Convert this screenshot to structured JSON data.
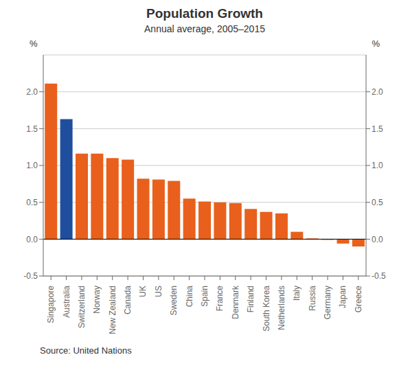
{
  "chart_data": {
    "type": "bar",
    "title": "Population Growth",
    "subtitle": "Annual average, 2005–2015",
    "ylabel": "%",
    "y2label": "%",
    "source_label": "Source:",
    "source": "United Nations",
    "categories": [
      "Singapore",
      "Australia",
      "Switzerland",
      "Norway",
      "New Zealand",
      "Canada",
      "UK",
      "US",
      "Sweden",
      "China",
      "Spain",
      "France",
      "Denmark",
      "Finland",
      "South Korea",
      "Netherlands",
      "Italy",
      "Russia",
      "Germany",
      "Japan",
      "Greece"
    ],
    "values": [
      2.11,
      1.63,
      1.16,
      1.16,
      1.1,
      1.08,
      0.82,
      0.81,
      0.79,
      0.55,
      0.51,
      0.5,
      0.49,
      0.41,
      0.37,
      0.35,
      0.1,
      0.01,
      -0.01,
      -0.06,
      -0.1
    ],
    "colors": [
      "#E8601C",
      "#1F4E9E",
      "#E8601C",
      "#E8601C",
      "#E8601C",
      "#E8601C",
      "#E8601C",
      "#E8601C",
      "#E8601C",
      "#E8601C",
      "#E8601C",
      "#E8601C",
      "#E8601C",
      "#E8601C",
      "#E8601C",
      "#E8601C",
      "#E8601C",
      "#E8601C",
      "#E8601C",
      "#E8601C",
      "#E8601C"
    ],
    "ylim": [
      -0.5,
      2.5
    ],
    "yticks": [
      -0.5,
      {
        "value": 0,
        "label": "0.0"
      },
      0.5,
      {
        "value": 1,
        "label": "1.0"
      },
      1.5,
      {
        "value": 2,
        "label": "2.0"
      }
    ],
    "y2lim": [
      -0.5,
      2.5
    ],
    "y2ticks": [
      -0.5,
      {
        "value": 0,
        "label": "0.0"
      },
      0.5,
      {
        "value": 1,
        "label": "1.0"
      },
      1.5,
      {
        "value": 2,
        "label": "2.0"
      }
    ],
    "grid": true
  }
}
